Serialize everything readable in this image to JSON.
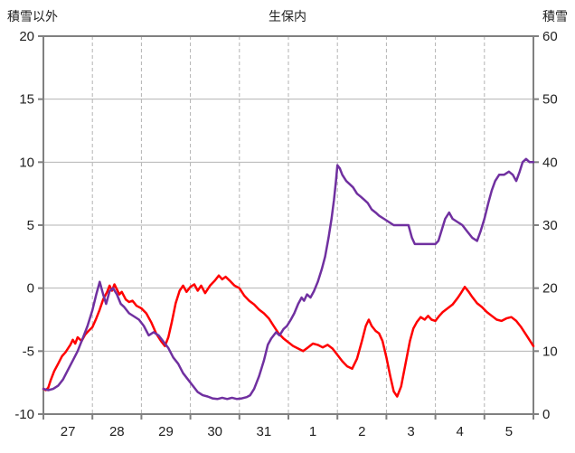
{
  "colors": {
    "temperature_line": "#FF0000",
    "snow_line": "#7030A0",
    "gridline": "#B3B3B3",
    "axis": "#808080",
    "text": "#1F1F1F",
    "background": "#FFFFFF"
  },
  "chart_data": {
    "type": "line",
    "title": "生保内",
    "legend": "none",
    "grid": "on",
    "x_unit": "days (fraction of day from 00:00 of day 27 to end of day 5)",
    "x_axis_days": [
      "27",
      "28",
      "29",
      "30",
      "31",
      "1",
      "2",
      "3",
      "4",
      "5"
    ],
    "left_axis": {
      "title": "積雪以外",
      "range": [
        -10,
        20
      ],
      "tick_step": 5,
      "ticks": [
        20,
        15,
        10,
        5,
        0,
        -5,
        -10
      ]
    },
    "right_axis": {
      "title": "積雪",
      "range": [
        0,
        60
      ],
      "tick_step": 10,
      "ticks": [
        60,
        50,
        40,
        30,
        20,
        10,
        0
      ]
    },
    "series": [
      {
        "name": "積雪以外",
        "axis": "left",
        "color": "#FF0000",
        "points": [
          [
            0,
            -8
          ],
          [
            0.05,
            -8.1
          ],
          [
            0.1,
            -7.9
          ],
          [
            0.15,
            -7.3
          ],
          [
            0.22,
            -6.6
          ],
          [
            0.3,
            -6
          ],
          [
            0.38,
            -5.4
          ],
          [
            0.45,
            -5.1
          ],
          [
            0.5,
            -4.8
          ],
          [
            0.55,
            -4.5
          ],
          [
            0.6,
            -4.1
          ],
          [
            0.65,
            -4.4
          ],
          [
            0.7,
            -3.9
          ],
          [
            0.78,
            -4.2
          ],
          [
            0.85,
            -3.7
          ],
          [
            0.92,
            -3.4
          ],
          [
            1,
            -3.1
          ],
          [
            1.08,
            -2.4
          ],
          [
            1.15,
            -1.7
          ],
          [
            1.22,
            -0.9
          ],
          [
            1.3,
            -0.3
          ],
          [
            1.35,
            0.2
          ],
          [
            1.4,
            -0.2
          ],
          [
            1.45,
            0.3
          ],
          [
            1.5,
            -0.1
          ],
          [
            1.55,
            -0.5
          ],
          [
            1.6,
            -0.3
          ],
          [
            1.68,
            -0.9
          ],
          [
            1.75,
            -1.1
          ],
          [
            1.82,
            -1
          ],
          [
            1.9,
            -1.4
          ],
          [
            2,
            -1.6
          ],
          [
            2.1,
            -2
          ],
          [
            2.2,
            -2.7
          ],
          [
            2.3,
            -3.6
          ],
          [
            2.4,
            -4.2
          ],
          [
            2.48,
            -4.6
          ],
          [
            2.55,
            -3.9
          ],
          [
            2.62,
            -2.7
          ],
          [
            2.7,
            -1.2
          ],
          [
            2.78,
            -0.2
          ],
          [
            2.85,
            0.2
          ],
          [
            2.92,
            -0.3
          ],
          [
            3,
            0.1
          ],
          [
            3.08,
            0.3
          ],
          [
            3.15,
            -0.2
          ],
          [
            3.22,
            0.2
          ],
          [
            3.3,
            -0.4
          ],
          [
            3.4,
            0.2
          ],
          [
            3.5,
            0.6
          ],
          [
            3.58,
            1
          ],
          [
            3.65,
            0.7
          ],
          [
            3.72,
            0.9
          ],
          [
            3.8,
            0.6
          ],
          [
            3.9,
            0.2
          ],
          [
            4,
            0
          ],
          [
            4.1,
            -0.6
          ],
          [
            4.2,
            -1
          ],
          [
            4.3,
            -1.3
          ],
          [
            4.4,
            -1.7
          ],
          [
            4.5,
            -2
          ],
          [
            4.6,
            -2.4
          ],
          [
            4.7,
            -3
          ],
          [
            4.8,
            -3.6
          ],
          [
            4.9,
            -4
          ],
          [
            5,
            -4.3
          ],
          [
            5.1,
            -4.6
          ],
          [
            5.2,
            -4.8
          ],
          [
            5.3,
            -5
          ],
          [
            5.4,
            -4.7
          ],
          [
            5.5,
            -4.4
          ],
          [
            5.6,
            -4.5
          ],
          [
            5.7,
            -4.7
          ],
          [
            5.8,
            -4.5
          ],
          [
            5.9,
            -4.8
          ],
          [
            6,
            -5.3
          ],
          [
            6.1,
            -5.8
          ],
          [
            6.2,
            -6.2
          ],
          [
            6.3,
            -6.4
          ],
          [
            6.4,
            -5.6
          ],
          [
            6.5,
            -4.2
          ],
          [
            6.58,
            -3
          ],
          [
            6.64,
            -2.5
          ],
          [
            6.7,
            -3
          ],
          [
            6.78,
            -3.4
          ],
          [
            6.85,
            -3.6
          ],
          [
            6.92,
            -4.2
          ],
          [
            7,
            -5.5
          ],
          [
            7.08,
            -7
          ],
          [
            7.15,
            -8.2
          ],
          [
            7.22,
            -8.6
          ],
          [
            7.3,
            -7.8
          ],
          [
            7.38,
            -6.2
          ],
          [
            7.48,
            -4.2
          ],
          [
            7.55,
            -3.2
          ],
          [
            7.62,
            -2.7
          ],
          [
            7.7,
            -2.3
          ],
          [
            7.78,
            -2.5
          ],
          [
            7.85,
            -2.2
          ],
          [
            7.92,
            -2.5
          ],
          [
            8,
            -2.6
          ],
          [
            8.08,
            -2.2
          ],
          [
            8.15,
            -1.9
          ],
          [
            8.25,
            -1.6
          ],
          [
            8.35,
            -1.3
          ],
          [
            8.45,
            -0.8
          ],
          [
            8.52,
            -0.4
          ],
          [
            8.6,
            0.1
          ],
          [
            8.68,
            -0.3
          ],
          [
            8.75,
            -0.7
          ],
          [
            8.85,
            -1.2
          ],
          [
            8.95,
            -1.5
          ],
          [
            9.05,
            -1.9
          ],
          [
            9.15,
            -2.2
          ],
          [
            9.25,
            -2.5
          ],
          [
            9.35,
            -2.6
          ],
          [
            9.45,
            -2.4
          ],
          [
            9.55,
            -2.3
          ],
          [
            9.65,
            -2.6
          ],
          [
            9.75,
            -3.1
          ],
          [
            9.85,
            -3.7
          ],
          [
            9.95,
            -4.3
          ],
          [
            10,
            -4.6
          ]
        ]
      },
      {
        "name": "積雪",
        "axis": "right",
        "color": "#7030A0",
        "points": [
          [
            0,
            4
          ],
          [
            0.1,
            3.8
          ],
          [
            0.2,
            4
          ],
          [
            0.3,
            4.5
          ],
          [
            0.4,
            5.5
          ],
          [
            0.5,
            7
          ],
          [
            0.6,
            8.5
          ],
          [
            0.7,
            10
          ],
          [
            0.8,
            12
          ],
          [
            0.9,
            14
          ],
          [
            1,
            16.5
          ],
          [
            1.08,
            19
          ],
          [
            1.15,
            21
          ],
          [
            1.22,
            19
          ],
          [
            1.28,
            17.5
          ],
          [
            1.35,
            19.5
          ],
          [
            1.42,
            20
          ],
          [
            1.5,
            19
          ],
          [
            1.58,
            17.5
          ],
          [
            1.65,
            17
          ],
          [
            1.75,
            16
          ],
          [
            1.85,
            15.5
          ],
          [
            1.95,
            15
          ],
          [
            2.05,
            14
          ],
          [
            2.15,
            12.5
          ],
          [
            2.25,
            13
          ],
          [
            2.35,
            12.5
          ],
          [
            2.45,
            11.5
          ],
          [
            2.55,
            10.5
          ],
          [
            2.65,
            9
          ],
          [
            2.75,
            8
          ],
          [
            2.85,
            6.5
          ],
          [
            2.95,
            5.5
          ],
          [
            3.05,
            4.5
          ],
          [
            3.15,
            3.5
          ],
          [
            3.25,
            3
          ],
          [
            3.35,
            2.8
          ],
          [
            3.45,
            2.5
          ],
          [
            3.55,
            2.4
          ],
          [
            3.65,
            2.6
          ],
          [
            3.75,
            2.4
          ],
          [
            3.85,
            2.6
          ],
          [
            3.95,
            2.4
          ],
          [
            4.05,
            2.5
          ],
          [
            4.15,
            2.7
          ],
          [
            4.22,
            3
          ],
          [
            4.3,
            4
          ],
          [
            4.4,
            6
          ],
          [
            4.5,
            8.5
          ],
          [
            4.58,
            11
          ],
          [
            4.65,
            12
          ],
          [
            4.75,
            13
          ],
          [
            4.82,
            12.5
          ],
          [
            4.9,
            13.5
          ],
          [
            4.97,
            14
          ],
          [
            5.05,
            15
          ],
          [
            5.12,
            16
          ],
          [
            5.2,
            17.5
          ],
          [
            5.27,
            18.5
          ],
          [
            5.32,
            18
          ],
          [
            5.38,
            19
          ],
          [
            5.45,
            18.5
          ],
          [
            5.52,
            19.5
          ],
          [
            5.6,
            21
          ],
          [
            5.68,
            23
          ],
          [
            5.75,
            25
          ],
          [
            5.82,
            28
          ],
          [
            5.88,
            31
          ],
          [
            5.93,
            34
          ],
          [
            5.97,
            37
          ],
          [
            6,
            39.5
          ],
          [
            6.05,
            39
          ],
          [
            6.1,
            38
          ],
          [
            6.18,
            37
          ],
          [
            6.25,
            36.5
          ],
          [
            6.32,
            36
          ],
          [
            6.4,
            35
          ],
          [
            6.48,
            34.5
          ],
          [
            6.55,
            34
          ],
          [
            6.62,
            33.5
          ],
          [
            6.7,
            32.5
          ],
          [
            6.78,
            32
          ],
          [
            6.85,
            31.5
          ],
          [
            6.95,
            31
          ],
          [
            7.05,
            30.5
          ],
          [
            7.15,
            30
          ],
          [
            7.3,
            30
          ],
          [
            7.45,
            30
          ],
          [
            7.52,
            28
          ],
          [
            7.58,
            27
          ],
          [
            7.7,
            27
          ],
          [
            7.85,
            27
          ],
          [
            8,
            27
          ],
          [
            8.06,
            27.5
          ],
          [
            8.12,
            29
          ],
          [
            8.2,
            31
          ],
          [
            8.28,
            32
          ],
          [
            8.35,
            31
          ],
          [
            8.45,
            30.5
          ],
          [
            8.55,
            30
          ],
          [
            8.65,
            29
          ],
          [
            8.75,
            28
          ],
          [
            8.85,
            27.5
          ],
          [
            8.92,
            29
          ],
          [
            9,
            31
          ],
          [
            9.08,
            33.5
          ],
          [
            9.15,
            35.5
          ],
          [
            9.22,
            37
          ],
          [
            9.3,
            38
          ],
          [
            9.4,
            38
          ],
          [
            9.5,
            38.5
          ],
          [
            9.58,
            38
          ],
          [
            9.65,
            37
          ],
          [
            9.72,
            38.5
          ],
          [
            9.78,
            40
          ],
          [
            9.85,
            40.5
          ],
          [
            9.92,
            40
          ],
          [
            10,
            40
          ]
        ]
      }
    ]
  }
}
